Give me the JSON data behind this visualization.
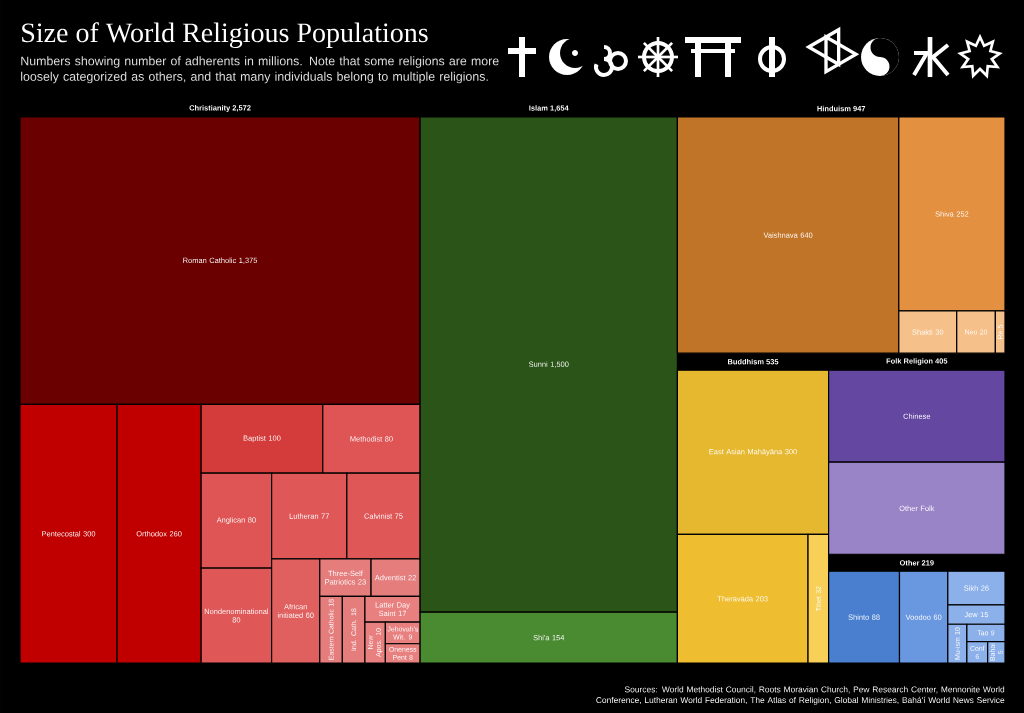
{
  "chart_data": [
    {
      "type": "other",
      "title": "Size of World Religious Populations",
      "subtitle": "Numbers showing number of adherents in millions. Note that some religions are more loosely categorized as others, and that many individuals belong to multiple religions.",
      "categories": [
        "Christianity",
        "Islam",
        "Hinduism",
        "Buddhism",
        "Folk Religion",
        "Other"
      ],
      "values": [
        2572,
        1654,
        947,
        535,
        405,
        219
      ],
      "value_labels": [
        "2,572",
        "1,654",
        "947",
        "535",
        "405",
        "219"
      ],
      "annotations": [
        "Sources: World Methodist Council, Roots Moravian Church, Pew Research Center, Mennonite World Conference, Lutheran World Federation, The Atlas of Religion, Global Ministries, Bahá'í World News Service"
      ]
    },
    {
      "type": "other",
      "categories": [
        "Roman Catholic",
        "Pentecostal",
        "Orthodox",
        "Baptist",
        "Methodist",
        "Anglican",
        "Nondenominational",
        "Lutheran",
        "Calvinist",
        "African initiated",
        "Three-Self Patriotics",
        "Adventist",
        "Eastern Catholic",
        "Ind. Cath.",
        "Latter Day Saint",
        "New Apos.",
        "Jehovah's Wit.",
        "Oneness Pent"
      ],
      "values": [
        1375,
        300,
        260,
        100,
        80,
        80,
        80,
        77,
        75,
        60,
        23,
        22,
        18,
        18,
        17,
        10,
        9,
        8
      ],
      "value_labels": [
        "1,375",
        "300",
        "260",
        "100",
        "80",
        "80",
        "80",
        "77",
        "75",
        "60",
        "23",
        "22",
        "18",
        "18",
        "17",
        "10",
        "9",
        "8"
      ],
      "colors": [
        "#6b0000",
        "#c00000",
        "#c00000",
        "#d43b3b",
        "#df5454",
        "#df5454",
        "#df5757",
        "#df5757",
        "#df5757",
        "#e06060",
        "#e57d7d",
        "#e57d7d",
        "#e57d7d",
        "#e57d7d",
        "#e88080",
        "#e88080",
        "#e88080",
        "#e88080"
      ]
    },
    {
      "type": "other",
      "categories": [
        "Sunni",
        "Shi'a"
      ],
      "values": [
        1500,
        154
      ],
      "value_labels": [
        "1,500",
        "154"
      ],
      "colors": [
        "#2a5418",
        "#4a8a30"
      ]
    },
    {
      "type": "other",
      "categories": [
        "Vaishnava",
        "Shiva",
        "Shakti",
        "Neo",
        "Re"
      ],
      "values": [
        640,
        252,
        30,
        20,
        5
      ],
      "value_labels": [
        "640",
        "252",
        "30",
        "20",
        "5"
      ],
      "colors": [
        "#c07428",
        "#e39040",
        "#f5c08a",
        "#f5c08a",
        "#f5c08a"
      ]
    },
    {
      "type": "other",
      "categories": [
        "East Asian Mahāyāna",
        "Theravāda",
        "Tibet"
      ],
      "values": [
        300,
        203,
        32
      ],
      "value_labels": [
        "300",
        "203",
        "32"
      ],
      "colors": [
        "#e6b830",
        "#eebd30",
        "#f8d058"
      ]
    },
    {
      "type": "other",
      "categories": [
        "Chinese",
        "Other Folk"
      ],
      "values": [
        null,
        null
      ],
      "colors": [
        "#6347a0",
        "#9a84c8"
      ]
    },
    {
      "type": "other",
      "categories": [
        "Shinto",
        "Voodoo",
        "Sikh",
        "Jew",
        "Mu-ism",
        "Tao",
        "Conf",
        "Bahai"
      ],
      "values": [
        88,
        60,
        26,
        15,
        10,
        9,
        6,
        5
      ],
      "value_labels": [
        "88",
        "60",
        "26",
        "15",
        "10",
        "9",
        "6",
        "5"
      ],
      "colors": [
        "#4a7fd0",
        "#6a98e0",
        "#8cb0ea",
        "#8cb0ea",
        "#8cb0ea",
        "#8cb0ea",
        "#8cb0ea",
        "#8cb0ea"
      ]
    }
  ]
}
